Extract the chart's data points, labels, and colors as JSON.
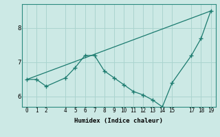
{
  "xlabel": "Humidex (Indice chaleur)",
  "background_color": "#cce9e5",
  "grid_color": "#aad4cf",
  "line_color": "#1a7a6e",
  "series1_x": [
    0,
    1,
    2,
    4,
    5,
    6,
    7,
    8,
    9,
    10,
    11,
    12,
    13,
    14,
    15,
    17,
    18,
    19
  ],
  "series1_y": [
    6.5,
    6.5,
    6.3,
    6.55,
    6.85,
    7.2,
    7.2,
    6.75,
    6.55,
    6.35,
    6.15,
    6.05,
    5.9,
    5.7,
    6.4,
    7.2,
    7.7,
    8.5
  ],
  "series2_x": [
    0,
    19
  ],
  "series2_y": [
    6.5,
    8.5
  ],
  "ylim": [
    5.7,
    8.7
  ],
  "xlim": [
    -0.5,
    19.5
  ],
  "yticks": [
    6,
    7,
    8
  ],
  "xticks": [
    0,
    1,
    2,
    4,
    5,
    6,
    7,
    8,
    9,
    10,
    11,
    12,
    13,
    14,
    15,
    17,
    18,
    19
  ]
}
